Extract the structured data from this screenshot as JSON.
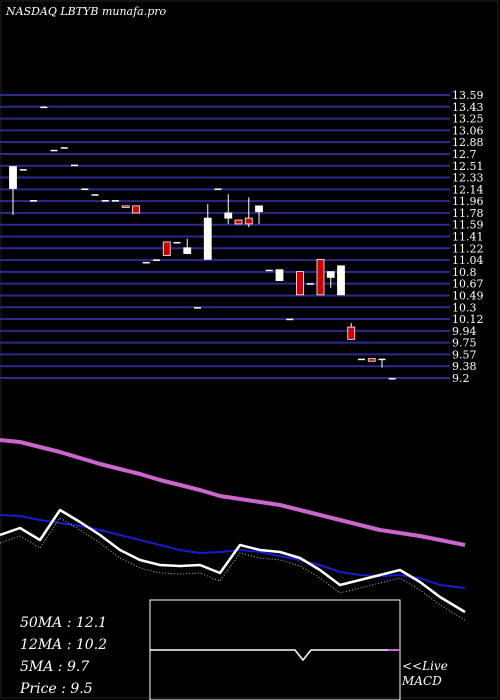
{
  "watermark": "NASDAQ LBTYB munafa.pro",
  "colors": {
    "background": "#000000",
    "grid": "#2b2b8f",
    "up_candle": "#ffffff",
    "down_candle": "#cc0000",
    "ma50": "#cc66cc",
    "ma12": "#1a1acc",
    "ma5": "#ffffff",
    "macd_line": "#cc66cc",
    "text": "#ffffff"
  },
  "chart_data": [
    {
      "type": "candlestick",
      "title": "NASDAQ LBTYB munafa.pro",
      "ylim": [
        9.2,
        13.59
      ],
      "y_ticks": [
        "13.59",
        "13.43",
        "13.25",
        "13.06",
        "12.88",
        "12.7",
        "12.51",
        "12.33",
        "12.14",
        "11.96",
        "11.78",
        "11.59",
        "11.41",
        "11.22",
        "11.04",
        "10.8",
        "10.67",
        "10.49",
        "10.3",
        "10.12",
        "9.94",
        "9.75",
        "9.57",
        "9.38",
        "9.2"
      ],
      "candles": [
        {
          "o": 12.14,
          "h": 12.48,
          "l": 11.73,
          "c": 12.48,
          "dir": "up"
        },
        {
          "o": 12.44,
          "h": 12.44,
          "l": 12.44,
          "c": 12.44,
          "dir": "flat"
        },
        {
          "o": 11.96,
          "h": 11.96,
          "l": 11.96,
          "c": 11.96,
          "dir": "flat"
        },
        {
          "o": 13.41,
          "h": 13.41,
          "l": 13.41,
          "c": 13.41,
          "dir": "flat"
        },
        {
          "o": 12.74,
          "h": 12.74,
          "l": 12.74,
          "c": 12.74,
          "dir": "flat"
        },
        {
          "o": 12.78,
          "h": 12.78,
          "l": 12.78,
          "c": 12.78,
          "dir": "flat"
        },
        {
          "o": 12.51,
          "h": 12.51,
          "l": 12.51,
          "c": 12.51,
          "dir": "flat"
        },
        {
          "o": 12.14,
          "h": 12.14,
          "l": 12.14,
          "c": 12.14,
          "dir": "flat"
        },
        {
          "o": 12.05,
          "h": 12.05,
          "l": 12.05,
          "c": 12.05,
          "dir": "flat"
        },
        {
          "o": 11.96,
          "h": 11.96,
          "l": 11.96,
          "c": 11.96,
          "dir": "flat"
        },
        {
          "o": 11.96,
          "h": 11.96,
          "l": 11.96,
          "c": 11.96,
          "dir": "flat"
        },
        {
          "o": 11.87,
          "h": 11.87,
          "l": 11.87,
          "c": 11.87,
          "dir": "down"
        },
        {
          "o": 11.87,
          "h": 11.87,
          "l": 11.76,
          "c": 11.76,
          "dir": "down"
        },
        {
          "o": 11.0,
          "h": 11.0,
          "l": 11.0,
          "c": 11.0,
          "dir": "flat"
        },
        {
          "o": 11.04,
          "h": 11.04,
          "l": 11.04,
          "c": 11.04,
          "dir": "flat"
        },
        {
          "o": 11.31,
          "h": 11.31,
          "l": 11.1,
          "c": 11.1,
          "dir": "down"
        },
        {
          "o": 11.31,
          "h": 11.31,
          "l": 11.31,
          "c": 11.31,
          "dir": "flat"
        },
        {
          "o": 11.13,
          "h": 11.36,
          "l": 11.13,
          "c": 11.22,
          "dir": "up"
        },
        {
          "o": 10.3,
          "h": 10.3,
          "l": 10.3,
          "c": 10.3,
          "dir": "flat"
        },
        {
          "o": 11.04,
          "h": 11.9,
          "l": 11.04,
          "c": 11.68,
          "dir": "up"
        },
        {
          "o": 12.14,
          "h": 12.14,
          "l": 12.14,
          "c": 12.14,
          "dir": "flat"
        },
        {
          "o": 11.68,
          "h": 12.05,
          "l": 11.59,
          "c": 11.76,
          "dir": "up"
        },
        {
          "o": 11.65,
          "h": 11.65,
          "l": 11.59,
          "c": 11.59,
          "dir": "down"
        },
        {
          "o": 11.68,
          "h": 12.0,
          "l": 11.54,
          "c": 11.59,
          "dir": "down"
        },
        {
          "o": 11.78,
          "h": 11.87,
          "l": 11.59,
          "c": 11.87,
          "dir": "up"
        },
        {
          "o": 10.88,
          "h": 10.88,
          "l": 10.88,
          "c": 10.88,
          "dir": "flat"
        },
        {
          "o": 10.71,
          "h": 10.88,
          "l": 10.71,
          "c": 10.88,
          "dir": "up"
        },
        {
          "o": 10.12,
          "h": 10.12,
          "l": 10.12,
          "c": 10.12,
          "dir": "flat"
        },
        {
          "o": 10.85,
          "h": 10.85,
          "l": 10.49,
          "c": 10.49,
          "dir": "down"
        },
        {
          "o": 10.67,
          "h": 10.67,
          "l": 10.67,
          "c": 10.67,
          "dir": "flat"
        },
        {
          "o": 11.04,
          "h": 11.04,
          "l": 10.49,
          "c": 10.49,
          "dir": "down"
        },
        {
          "o": 10.85,
          "h": 10.85,
          "l": 10.6,
          "c": 10.76,
          "dir": "up"
        },
        {
          "o": 10.49,
          "h": 10.94,
          "l": 10.49,
          "c": 10.94,
          "dir": "up"
        },
        {
          "o": 9.99,
          "h": 10.05,
          "l": 9.8,
          "c": 9.8,
          "dir": "down"
        },
        {
          "o": 9.5,
          "h": 9.5,
          "l": 9.5,
          "c": 9.5,
          "dir": "flat"
        },
        {
          "o": 9.5,
          "h": 9.5,
          "l": 9.46,
          "c": 9.46,
          "dir": "down"
        },
        {
          "o": 9.5,
          "h": 9.5,
          "l": 9.36,
          "c": 9.5,
          "dir": "flat"
        },
        {
          "o": 9.2,
          "h": 9.2,
          "l": 9.2,
          "c": 9.2,
          "dir": "flat"
        }
      ]
    },
    {
      "type": "line",
      "series": [
        {
          "name": "50MA",
          "x": [
            0,
            20,
            40,
            60,
            80,
            100,
            120,
            140,
            160,
            180,
            200,
            220,
            240,
            260,
            280,
            300,
            320,
            340,
            360,
            380,
            400,
            420,
            440,
            465
          ],
          "values": [
            440,
            442,
            447,
            452,
            458,
            464,
            469,
            474,
            480,
            485,
            490,
            496,
            499,
            502,
            505,
            510,
            515,
            520,
            525,
            530,
            533,
            536,
            540,
            545
          ]
        },
        {
          "name": "12MA",
          "x": [
            0,
            20,
            40,
            60,
            80,
            100,
            120,
            140,
            160,
            180,
            200,
            220,
            240,
            260,
            280,
            300,
            320,
            340,
            360,
            380,
            400,
            420,
            440,
            465
          ],
          "values": [
            515,
            516,
            520,
            523,
            526,
            530,
            535,
            540,
            545,
            550,
            553,
            552,
            550,
            552,
            556,
            560,
            565,
            572,
            575,
            576,
            575,
            578,
            585,
            588
          ]
        },
        {
          "name": "5MA",
          "x": [
            0,
            20,
            40,
            60,
            80,
            100,
            120,
            140,
            160,
            180,
            200,
            220,
            240,
            260,
            280,
            300,
            320,
            340,
            360,
            380,
            400,
            420,
            440,
            465
          ],
          "values": [
            535,
            528,
            540,
            510,
            522,
            535,
            550,
            560,
            565,
            566,
            565,
            573,
            545,
            550,
            552,
            558,
            570,
            585,
            580,
            575,
            570,
            582,
            597,
            612
          ]
        }
      ]
    },
    {
      "type": "macd",
      "label": "MACD",
      "live": "<<Live"
    }
  ],
  "legend": {
    "ma50": "50MA : 12.1",
    "ma12": "12MA : 10.2",
    "ma5": "5MA : 9.7",
    "price": "Price   : 9.5"
  }
}
